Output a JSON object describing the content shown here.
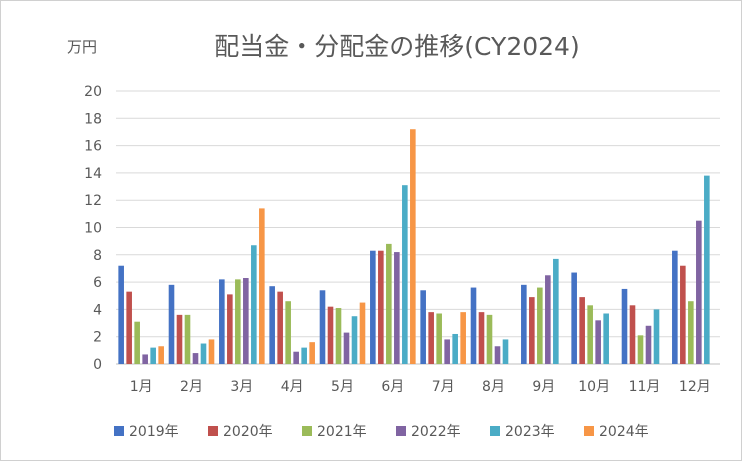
{
  "chart_data": {
    "type": "bar",
    "title": "配当金・分配金の推移(CY2024)",
    "ylabel": "万円",
    "xlabel": "",
    "ylim": [
      0,
      20
    ],
    "ytick_step": 2,
    "grid": true,
    "legend_position": "bottom",
    "categories": [
      "1月",
      "2月",
      "3月",
      "4月",
      "5月",
      "6月",
      "7月",
      "8月",
      "9月",
      "10月",
      "11月",
      "12月"
    ],
    "series": [
      {
        "name": "2019年",
        "color": "#4472c4",
        "values": [
          7.2,
          5.8,
          6.2,
          5.7,
          5.4,
          8.3,
          5.4,
          5.6,
          5.8,
          6.7,
          5.5,
          8.3
        ]
      },
      {
        "name": "2020年",
        "color": "#c0504d",
        "values": [
          5.3,
          3.6,
          5.1,
          5.3,
          4.2,
          8.3,
          3.8,
          3.8,
          4.9,
          4.9,
          4.3,
          7.2
        ]
      },
      {
        "name": "2021年",
        "color": "#9bbb59",
        "values": [
          3.1,
          3.6,
          6.2,
          4.6,
          4.1,
          8.8,
          3.7,
          3.6,
          5.6,
          4.3,
          2.1,
          4.6
        ]
      },
      {
        "name": "2022年",
        "color": "#8064a2",
        "values": [
          0.7,
          0.8,
          6.3,
          0.9,
          2.3,
          8.2,
          1.8,
          1.3,
          6.5,
          3.2,
          2.8,
          10.5
        ]
      },
      {
        "name": "2023年",
        "color": "#4bacc6",
        "values": [
          1.2,
          1.5,
          8.7,
          1.2,
          3.5,
          13.1,
          2.2,
          1.8,
          7.7,
          3.7,
          4.0,
          13.8
        ]
      },
      {
        "name": "2024年",
        "color": "#f79646",
        "values": [
          1.3,
          1.8,
          11.4,
          1.6,
          4.5,
          17.2,
          3.8,
          null,
          null,
          null,
          null,
          null
        ]
      }
    ]
  }
}
